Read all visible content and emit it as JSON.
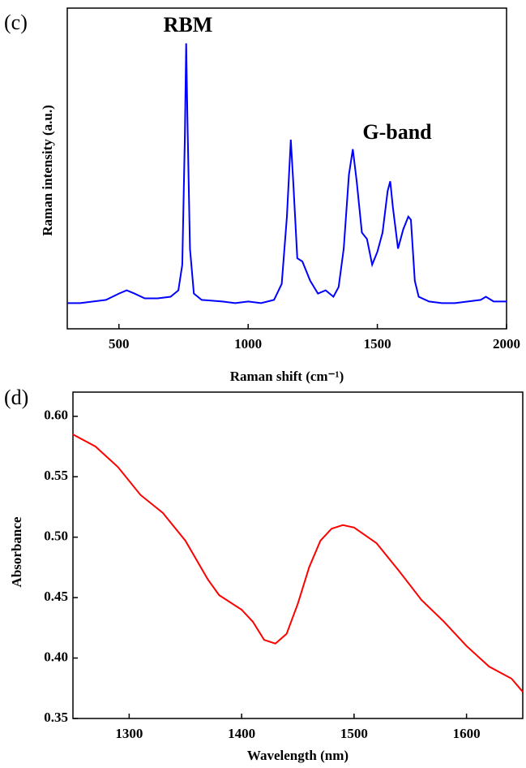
{
  "chart_data": [
    {
      "type": "line",
      "panel_label": "(c)",
      "annotations": [
        "RBM",
        "G-band"
      ],
      "xlabel": "Raman shift (cm⁻¹)",
      "ylabel": "Raman intensity (a.u.)",
      "xlim": [
        300,
        2000
      ],
      "xticks": [
        500,
        1000,
        1500,
        2000
      ],
      "ylim": [
        0,
        100
      ],
      "x": [
        300,
        350,
        400,
        450,
        500,
        530,
        560,
        600,
        650,
        700,
        730,
        745,
        755,
        760,
        765,
        775,
        790,
        820,
        900,
        950,
        1000,
        1050,
        1100,
        1130,
        1150,
        1165,
        1175,
        1190,
        1210,
        1240,
        1270,
        1300,
        1330,
        1350,
        1370,
        1390,
        1405,
        1420,
        1440,
        1460,
        1480,
        1500,
        1520,
        1540,
        1550,
        1560,
        1580,
        1600,
        1620,
        1630,
        1645,
        1660,
        1700,
        1750,
        1800,
        1850,
        1900,
        1920,
        1950,
        2000
      ],
      "series": [
        {
          "color": "#0000ff",
          "values": [
            8,
            8,
            8.5,
            9,
            11,
            12,
            11,
            9.5,
            9.5,
            10,
            12,
            20,
            60,
            89,
            65,
            25,
            11,
            9,
            8.5,
            8,
            8.5,
            8,
            9,
            14,
            35,
            59,
            45,
            22,
            21,
            15,
            11,
            12,
            10,
            13,
            25,
            48,
            56,
            46,
            30,
            28,
            20,
            24,
            30,
            43,
            46,
            38,
            25,
            31,
            35,
            34,
            15,
            10,
            8.5,
            8,
            8,
            8.5,
            9,
            10,
            8.5,
            8.5
          ]
        }
      ]
    },
    {
      "type": "line",
      "panel_label": "(d)",
      "xlabel": "Wavelength (nm)",
      "ylabel": "Absorbance",
      "xlim": [
        1250,
        1650
      ],
      "xticks": [
        1300,
        1400,
        1500,
        1600
      ],
      "ylim": [
        0.35,
        0.62
      ],
      "yticks": [
        0.35,
        {
          "value": 0.4,
          "label": "0.40"
        },
        0.45,
        {
          "value": 0.5,
          "label": "0.50"
        },
        0.55,
        {
          "value": 0.6,
          "label": "0.60"
        }
      ],
      "x": [
        1250,
        1270,
        1290,
        1310,
        1330,
        1350,
        1370,
        1380,
        1400,
        1410,
        1420,
        1430,
        1440,
        1450,
        1460,
        1470,
        1480,
        1490,
        1500,
        1520,
        1540,
        1560,
        1580,
        1600,
        1620,
        1640,
        1650
      ],
      "series": [
        {
          "color": "#ff0000",
          "values": [
            0.585,
            0.575,
            0.558,
            0.535,
            0.52,
            0.497,
            0.465,
            0.452,
            0.44,
            0.43,
            0.415,
            0.412,
            0.42,
            0.445,
            0.475,
            0.497,
            0.507,
            0.51,
            0.508,
            0.495,
            0.472,
            0.448,
            0.43,
            0.41,
            0.393,
            0.383,
            0.372
          ]
        }
      ]
    }
  ]
}
